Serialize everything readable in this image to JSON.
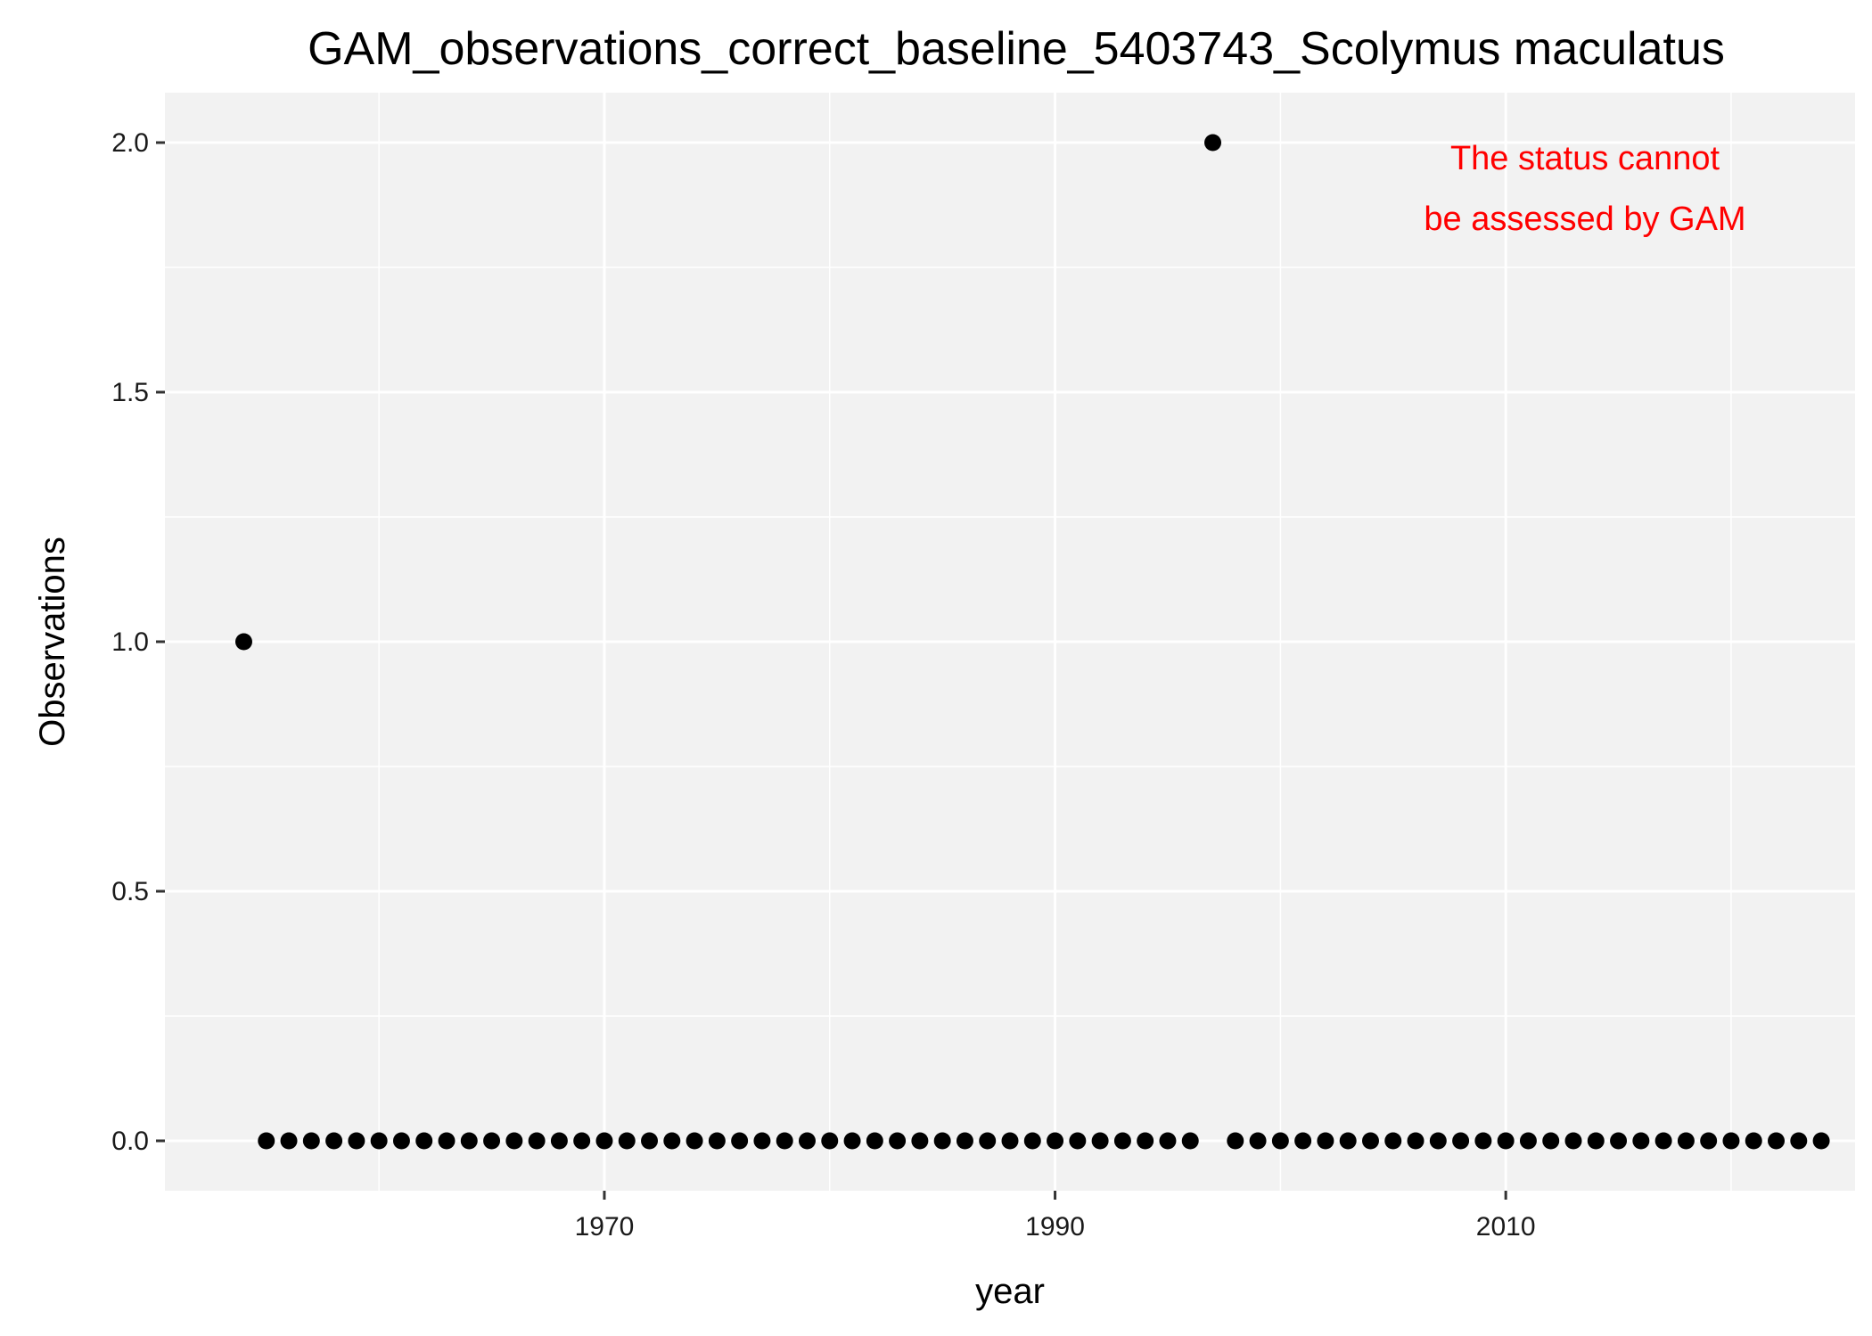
{
  "chart_data": {
    "type": "scatter",
    "title": "GAM_observations_correct_baseline_5403743_Scolymus maculatus",
    "xlabel": "year",
    "ylabel": "Observations",
    "xlim": [
      1950.5,
      2025.5
    ],
    "ylim": [
      -0.1,
      2.1
    ],
    "x_ticks": [
      1970,
      1990,
      2010
    ],
    "x_tick_labels": [
      "1970",
      "1990",
      "2010"
    ],
    "y_ticks": [
      0,
      0.5,
      1,
      1.5,
      2
    ],
    "y_tick_labels": [
      "0.0",
      "0.5",
      "1.0",
      "1.5",
      "2.0"
    ],
    "grid": true,
    "panel_background": "#f2f2f2",
    "grid_color": "#ffffff",
    "point_color": "#000000",
    "points": [
      {
        "x": 1954,
        "y": 1
      },
      {
        "x": 1955,
        "y": 0
      },
      {
        "x": 1956,
        "y": 0
      },
      {
        "x": 1957,
        "y": 0
      },
      {
        "x": 1958,
        "y": 0
      },
      {
        "x": 1959,
        "y": 0
      },
      {
        "x": 1960,
        "y": 0
      },
      {
        "x": 1961,
        "y": 0
      },
      {
        "x": 1962,
        "y": 0
      },
      {
        "x": 1963,
        "y": 0
      },
      {
        "x": 1964,
        "y": 0
      },
      {
        "x": 1965,
        "y": 0
      },
      {
        "x": 1966,
        "y": 0
      },
      {
        "x": 1967,
        "y": 0
      },
      {
        "x": 1968,
        "y": 0
      },
      {
        "x": 1969,
        "y": 0
      },
      {
        "x": 1970,
        "y": 0
      },
      {
        "x": 1971,
        "y": 0
      },
      {
        "x": 1972,
        "y": 0
      },
      {
        "x": 1973,
        "y": 0
      },
      {
        "x": 1974,
        "y": 0
      },
      {
        "x": 1975,
        "y": 0
      },
      {
        "x": 1976,
        "y": 0
      },
      {
        "x": 1977,
        "y": 0
      },
      {
        "x": 1978,
        "y": 0
      },
      {
        "x": 1979,
        "y": 0
      },
      {
        "x": 1980,
        "y": 0
      },
      {
        "x": 1981,
        "y": 0
      },
      {
        "x": 1982,
        "y": 0
      },
      {
        "x": 1983,
        "y": 0
      },
      {
        "x": 1984,
        "y": 0
      },
      {
        "x": 1985,
        "y": 0
      },
      {
        "x": 1986,
        "y": 0
      },
      {
        "x": 1987,
        "y": 0
      },
      {
        "x": 1988,
        "y": 0
      },
      {
        "x": 1989,
        "y": 0
      },
      {
        "x": 1990,
        "y": 0
      },
      {
        "x": 1991,
        "y": 0
      },
      {
        "x": 1992,
        "y": 0
      },
      {
        "x": 1993,
        "y": 0
      },
      {
        "x": 1994,
        "y": 0
      },
      {
        "x": 1995,
        "y": 0
      },
      {
        "x": 1996,
        "y": 0
      },
      {
        "x": 1997,
        "y": 2
      },
      {
        "x": 1998,
        "y": 0
      },
      {
        "x": 1999,
        "y": 0
      },
      {
        "x": 2000,
        "y": 0
      },
      {
        "x": 2001,
        "y": 0
      },
      {
        "x": 2002,
        "y": 0
      },
      {
        "x": 2003,
        "y": 0
      },
      {
        "x": 2004,
        "y": 0
      },
      {
        "x": 2005,
        "y": 0
      },
      {
        "x": 2006,
        "y": 0
      },
      {
        "x": 2007,
        "y": 0
      },
      {
        "x": 2008,
        "y": 0
      },
      {
        "x": 2009,
        "y": 0
      },
      {
        "x": 2010,
        "y": 0
      },
      {
        "x": 2011,
        "y": 0
      },
      {
        "x": 2012,
        "y": 0
      },
      {
        "x": 2013,
        "y": 0
      },
      {
        "x": 2014,
        "y": 0
      },
      {
        "x": 2015,
        "y": 0
      },
      {
        "x": 2016,
        "y": 0
      },
      {
        "x": 2017,
        "y": 0
      },
      {
        "x": 2018,
        "y": 0
      },
      {
        "x": 2019,
        "y": 0
      },
      {
        "x": 2020,
        "y": 0
      },
      {
        "x": 2021,
        "y": 0
      },
      {
        "x": 2022,
        "y": 0
      },
      {
        "x": 2023,
        "y": 0
      },
      {
        "x": 2024,
        "y": 0
      }
    ],
    "annotation": {
      "lines": [
        "The status cannot",
        "be assessed by GAM"
      ],
      "color": "#ff0000",
      "placement": "top-right"
    }
  }
}
